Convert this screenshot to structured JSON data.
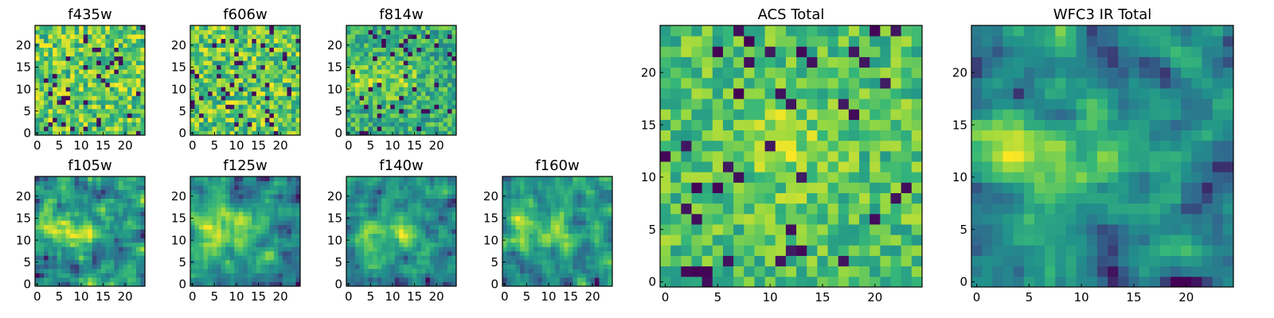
{
  "figure": {
    "description_type": "grid of heatmap image panels",
    "colormap": [
      "#440154",
      "#31688e",
      "#21918c",
      "#35b779",
      "#90d743",
      "#fde725"
    ]
  },
  "chart_data": [
    {
      "type": "heatmap",
      "title": "f435w",
      "grid_size": 25,
      "xlim": [
        0,
        24
      ],
      "ylim": [
        0,
        24
      ],
      "xticks": [
        0,
        5,
        10,
        15,
        20
      ],
      "yticks": [
        0,
        5,
        10,
        15,
        20
      ],
      "xlabel": "",
      "ylabel": "",
      "texture": "noise",
      "seed": 11,
      "peaks": []
    },
    {
      "type": "heatmap",
      "title": "f606w",
      "grid_size": 25,
      "xlim": [
        0,
        24
      ],
      "ylim": [
        0,
        24
      ],
      "xticks": [
        0,
        5,
        10,
        15,
        20
      ],
      "yticks": [
        0,
        5,
        10,
        15,
        20
      ],
      "xlabel": "",
      "ylabel": "",
      "texture": "noise",
      "seed": 23,
      "peaks": []
    },
    {
      "type": "heatmap",
      "title": "f814w",
      "grid_size": 25,
      "xlim": [
        0,
        24
      ],
      "ylim": [
        0,
        24
      ],
      "xticks": [
        0,
        5,
        10,
        15,
        20
      ],
      "yticks": [
        0,
        5,
        10,
        15,
        20
      ],
      "xlabel": "",
      "ylabel": "",
      "texture": "noise",
      "seed": 37,
      "peaks": [
        {
          "x": 4,
          "y": 12,
          "amp": 0.25,
          "sigma": 3
        },
        {
          "x": 12,
          "y": 12,
          "amp": 0.25,
          "sigma": 3
        }
      ]
    },
    {
      "type": "heatmap",
      "title": "f105w",
      "grid_size": 25,
      "xlim": [
        0,
        24
      ],
      "ylim": [
        0,
        24
      ],
      "xticks": [
        0,
        5,
        10,
        15,
        20
      ],
      "yticks": [
        0,
        5,
        10,
        15,
        20
      ],
      "xlabel": "",
      "ylabel": "",
      "texture": "smooth",
      "seed": 41,
      "peaks": [
        {
          "x": 3,
          "y": 13,
          "amp": 0.5,
          "sigma": 3
        },
        {
          "x": 11,
          "y": 12,
          "amp": 0.5,
          "sigma": 3
        }
      ]
    },
    {
      "type": "heatmap",
      "title": "f125w",
      "grid_size": 25,
      "xlim": [
        0,
        24
      ],
      "ylim": [
        0,
        24
      ],
      "xticks": [
        0,
        5,
        10,
        15,
        20
      ],
      "yticks": [
        0,
        5,
        10,
        15,
        20
      ],
      "xlabel": "",
      "ylabel": "",
      "texture": "smooth",
      "seed": 53,
      "peaks": [
        {
          "x": 4,
          "y": 13,
          "amp": 0.45,
          "sigma": 3.5
        },
        {
          "x": 11,
          "y": 12,
          "amp": 0.45,
          "sigma": 3.5
        }
      ]
    },
    {
      "type": "heatmap",
      "title": "f140w",
      "grid_size": 25,
      "xlim": [
        0,
        24
      ],
      "ylim": [
        0,
        24
      ],
      "xticks": [
        0,
        5,
        10,
        15,
        20
      ],
      "yticks": [
        0,
        5,
        10,
        15,
        20
      ],
      "xlabel": "",
      "ylabel": "",
      "texture": "smooth",
      "seed": 67,
      "peaks": [
        {
          "x": 4,
          "y": 13,
          "amp": 0.55,
          "sigma": 3
        },
        {
          "x": 12,
          "y": 12,
          "amp": 0.55,
          "sigma": 3
        }
      ]
    },
    {
      "type": "heatmap",
      "title": "f160w",
      "grid_size": 25,
      "xlim": [
        0,
        24
      ],
      "ylim": [
        0,
        24
      ],
      "xticks": [
        0,
        5,
        10,
        15,
        20
      ],
      "yticks": [
        0,
        5,
        10,
        15,
        20
      ],
      "xlabel": "",
      "ylabel": "",
      "texture": "smooth",
      "seed": 79,
      "peaks": [
        {
          "x": 4,
          "y": 13,
          "amp": 0.6,
          "sigma": 3
        },
        {
          "x": 12,
          "y": 12,
          "amp": 0.55,
          "sigma": 3
        }
      ]
    },
    {
      "type": "heatmap",
      "title": "ACS Total",
      "grid_size": 25,
      "xlim": [
        0,
        24
      ],
      "ylim": [
        0,
        24
      ],
      "xticks": [
        0,
        5,
        10,
        15,
        20
      ],
      "yticks": [
        0,
        5,
        10,
        15,
        20
      ],
      "xlabel": "",
      "ylabel": "",
      "texture": "noise-bright",
      "seed": 97,
      "peaks": [
        {
          "x": 12,
          "y": 13,
          "amp": 0.2,
          "sigma": 3
        }
      ]
    },
    {
      "type": "heatmap",
      "title": "WFC3 IR Total",
      "grid_size": 25,
      "xlim": [
        0,
        24
      ],
      "ylim": [
        0,
        24
      ],
      "xticks": [
        0,
        5,
        10,
        15,
        20
      ],
      "yticks": [
        0,
        5,
        10,
        15,
        20
      ],
      "xlabel": "",
      "ylabel": "",
      "texture": "smooth",
      "seed": 101,
      "peaks": [
        {
          "x": 3,
          "y": 13,
          "amp": 0.6,
          "sigma": 2.8
        },
        {
          "x": 12,
          "y": 12,
          "amp": 0.6,
          "sigma": 2.8
        },
        {
          "x": 18,
          "y": 11,
          "amp": 0.3,
          "sigma": 1.5
        }
      ]
    }
  ]
}
